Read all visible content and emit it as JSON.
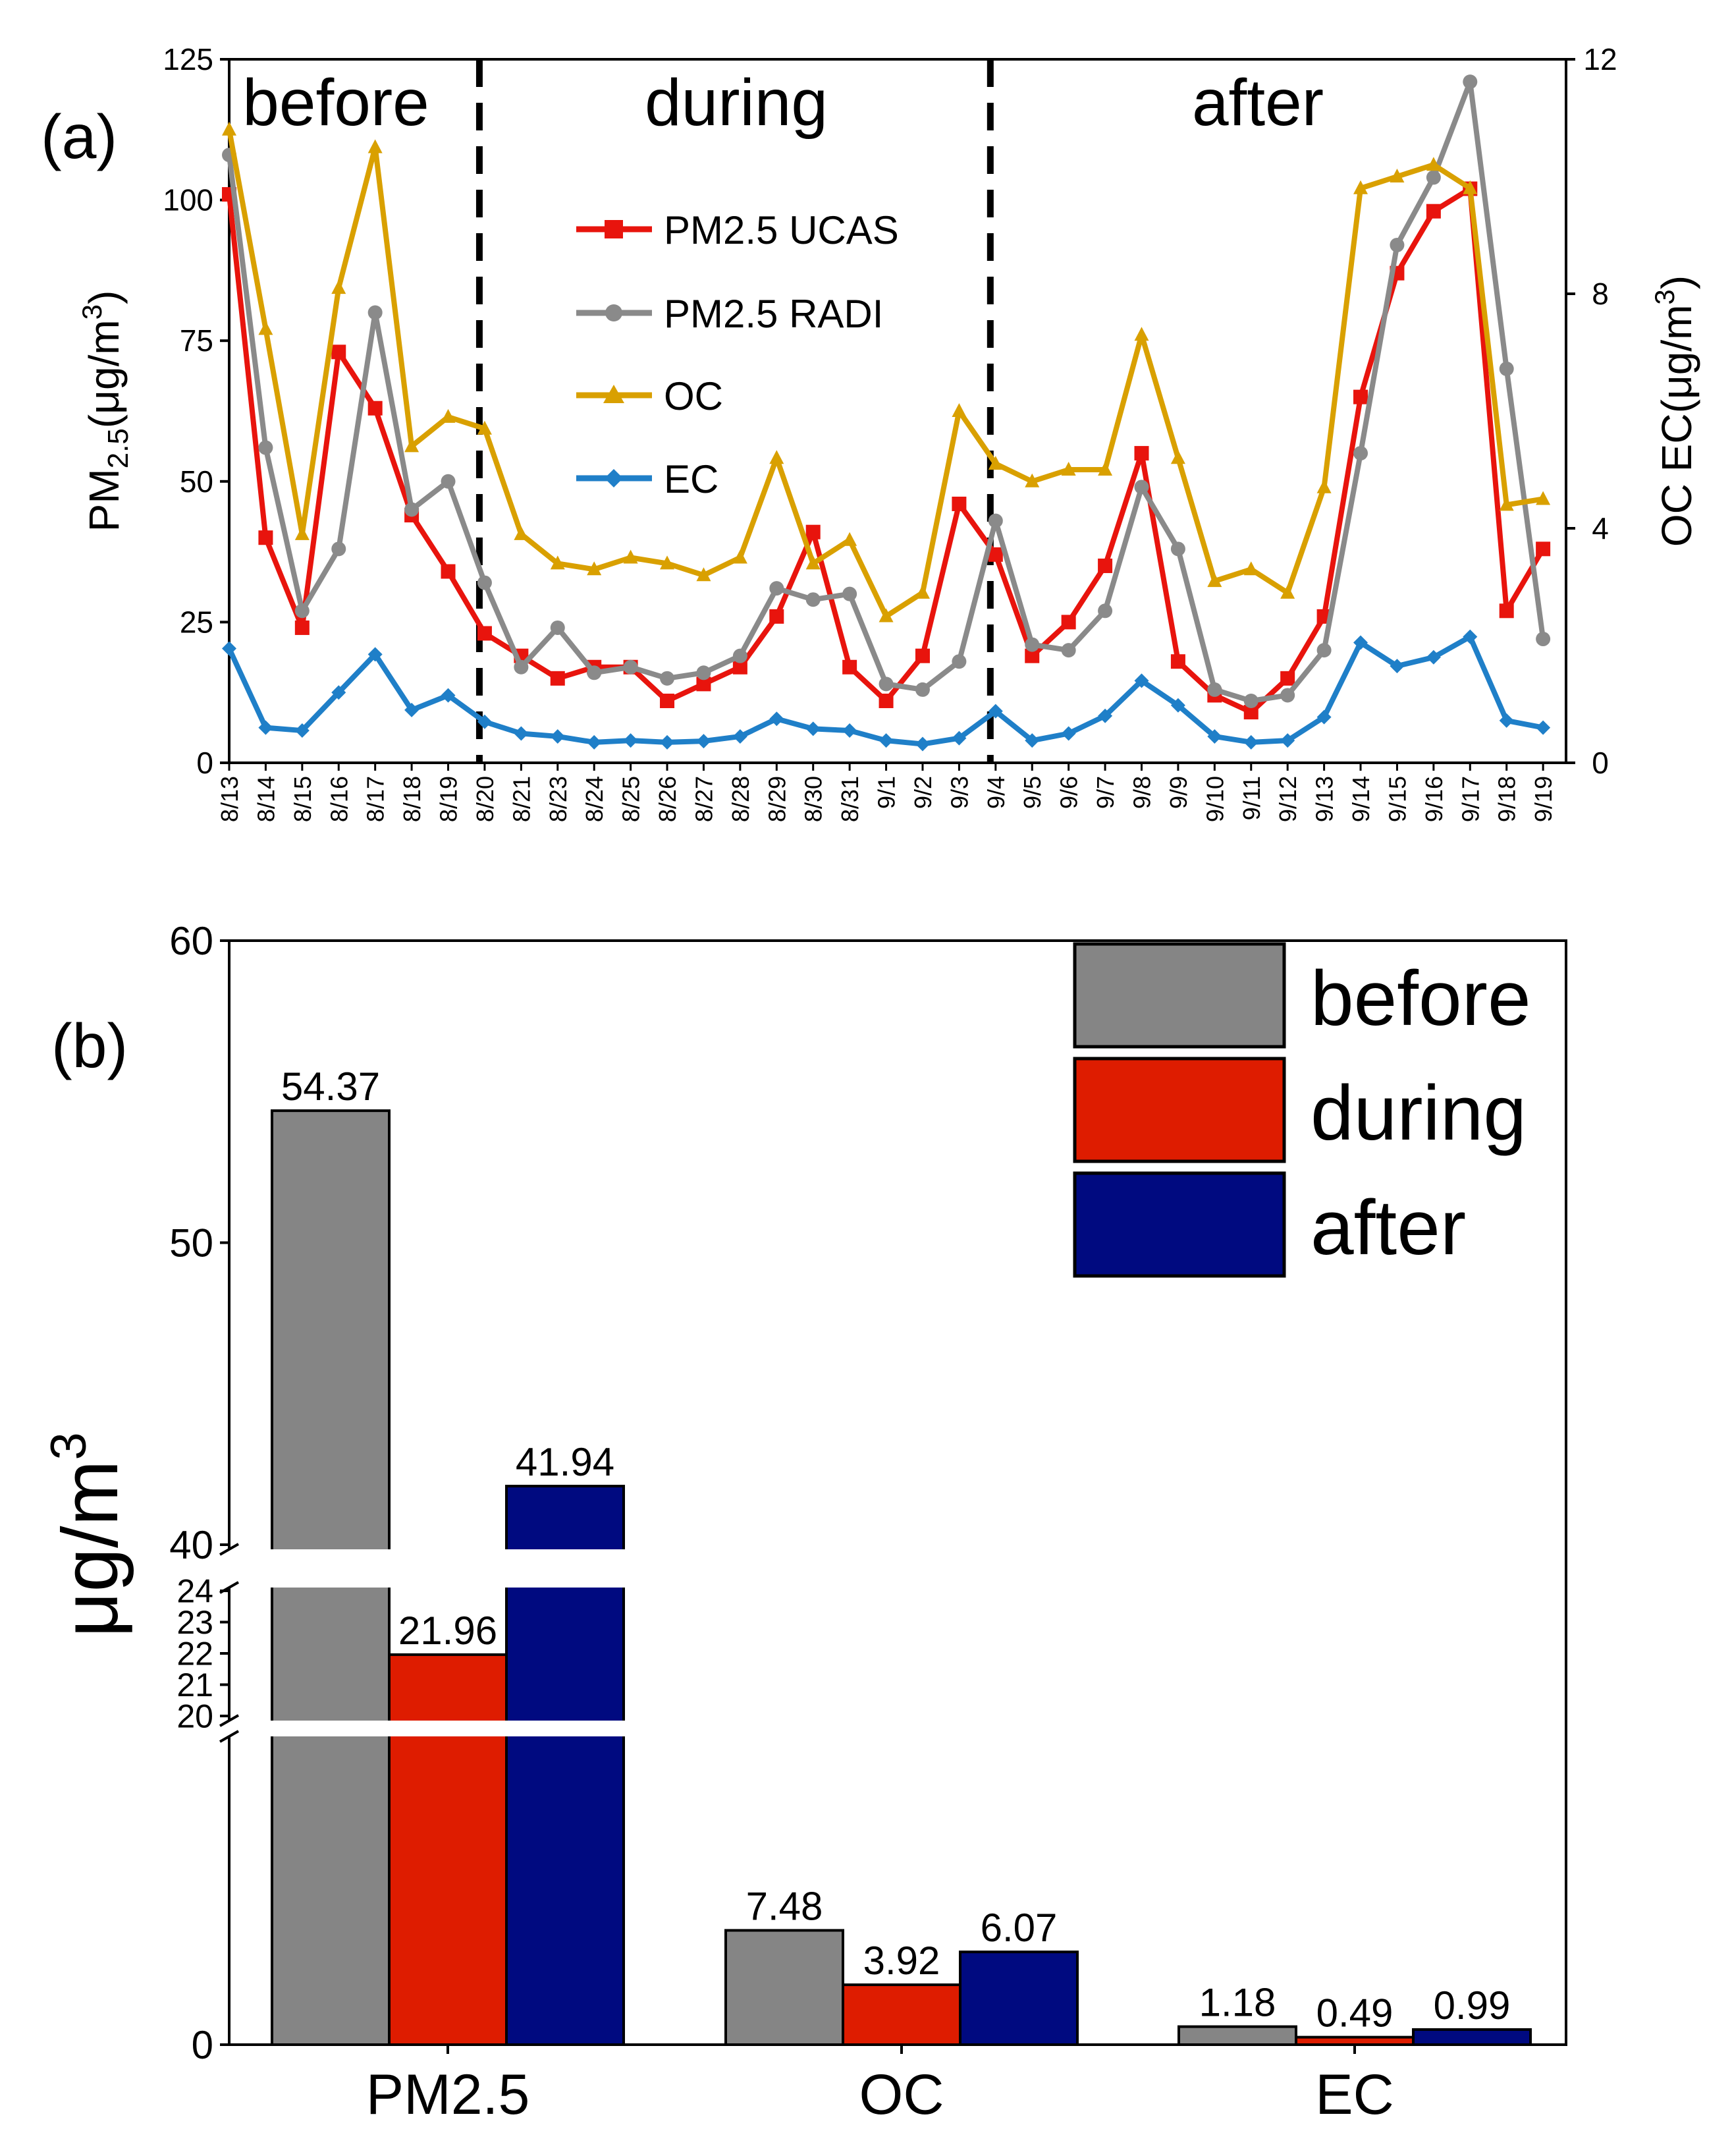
{
  "chart_data": [
    {
      "type": "line",
      "panel_label": "(a)",
      "title": "",
      "xlabel": "",
      "ylabel_main": "PM",
      "ylabel_sub": "2.5",
      "ylabel_unit_open": "(μg/m",
      "ylabel_unit_sup": "3",
      "ylabel_unit_close": ")",
      "y2label": "OC EC(μg/m",
      "y2label_sup": "3",
      "y2label_close": ")",
      "ylim": [
        0,
        125
      ],
      "yticks": [
        0,
        25,
        50,
        75,
        100,
        125
      ],
      "y2lim": [
        0,
        12
      ],
      "y2ticks": [
        0,
        4,
        8,
        12
      ],
      "periods": [
        "before",
        "during",
        "after"
      ],
      "dividers_after_category": [
        "8/20",
        "9/4"
      ],
      "categories": [
        "8/13",
        "8/14",
        "8/15",
        "8/16",
        "8/17",
        "8/18",
        "8/19",
        "8/20",
        "8/21",
        "8/23",
        "8/24",
        "8/25",
        "8/26",
        "8/27",
        "8/28",
        "8/29",
        "8/30",
        "8/31",
        "9/1",
        "9/2",
        "9/3",
        "9/4",
        "9/5",
        "9/6",
        "9/7",
        "9/8",
        "9/9",
        "9/10",
        "9/11",
        "9/12",
        "9/13",
        "9/14",
        "9/15",
        "9/16",
        "9/17",
        "9/18",
        "9/19"
      ],
      "series": [
        {
          "name": "PM2.5 UCAS",
          "axis": "left",
          "color": "#e8140d",
          "marker": "square",
          "values": [
            101,
            40,
            24,
            73,
            63,
            44,
            34,
            23,
            19,
            15,
            17,
            17,
            11,
            14,
            17,
            26,
            41,
            17,
            11,
            19,
            46,
            37,
            19,
            25,
            35,
            55,
            18,
            12,
            9,
            15,
            26,
            65,
            87,
            98,
            102,
            27,
            38
          ]
        },
        {
          "name": "PM2.5 RADI",
          "axis": "left",
          "color": "#8a8a8a",
          "marker": "circle",
          "values": [
            108,
            56,
            27,
            38,
            80,
            45,
            50,
            32,
            17,
            24,
            16,
            17,
            15,
            16,
            19,
            31,
            29,
            30,
            14,
            13,
            18,
            43,
            21,
            20,
            27,
            49,
            38,
            13,
            11,
            12,
            20,
            55,
            92,
            104,
            121,
            70,
            22
          ]
        },
        {
          "name": "OC",
          "axis": "right",
          "color": "#d9a000",
          "marker": "triangle",
          "values": [
            10.8,
            7.4,
            3.9,
            8.1,
            10.5,
            5.4,
            5.9,
            5.7,
            3.9,
            3.4,
            3.3,
            3.5,
            3.4,
            3.2,
            3.5,
            5.2,
            3.4,
            3.8,
            2.5,
            2.9,
            6.0,
            5.1,
            4.8,
            5.0,
            5.0,
            7.3,
            5.2,
            3.1,
            3.3,
            2.9,
            4.7,
            9.8,
            10.0,
            10.2,
            9.8,
            4.4,
            4.5
          ]
        },
        {
          "name": "EC",
          "axis": "right",
          "color": "#1f7fc8",
          "marker": "diamond",
          "values": [
            1.95,
            0.6,
            0.55,
            1.2,
            1.85,
            0.9,
            1.15,
            0.7,
            0.5,
            0.45,
            0.35,
            0.38,
            0.35,
            0.37,
            0.45,
            0.75,
            0.58,
            0.55,
            0.38,
            0.32,
            0.42,
            0.88,
            0.38,
            0.5,
            0.8,
            1.4,
            0.98,
            0.45,
            0.35,
            0.38,
            0.78,
            2.05,
            1.65,
            1.8,
            2.15,
            0.72,
            0.6
          ]
        }
      ]
    },
    {
      "type": "bar",
      "panel_label": "(b)",
      "title": "",
      "xlabel": "",
      "ylabel": "μg/m",
      "ylabel_sup": "3",
      "categories": [
        "PM2.5",
        "OC",
        "EC"
      ],
      "series": [
        {
          "name": "before",
          "color": "#858585",
          "values": [
            54.37,
            7.48,
            1.18
          ],
          "labels": [
            "54.37",
            "7.48",
            "1.18"
          ]
        },
        {
          "name": "during",
          "color": "#de1c00",
          "values": [
            21.96,
            3.92,
            0.49
          ],
          "labels": [
            "21.96",
            "3.92",
            "0.49"
          ]
        },
        {
          "name": "after",
          "color": "#000a80",
          "values": [
            41.94,
            6.07,
            0.99
          ],
          "labels": [
            "41.94",
            "6.07",
            "0.99"
          ]
        }
      ],
      "axis_break": {
        "lower": [
          0,
          20
        ],
        "middle": [
          20,
          24
        ],
        "upper": [
          40,
          60
        ]
      },
      "yticks_lower": [
        0
      ],
      "yticks_middle": [
        20,
        21,
        22,
        23,
        24
      ],
      "yticks_upper": [
        40,
        50,
        60
      ]
    }
  ]
}
